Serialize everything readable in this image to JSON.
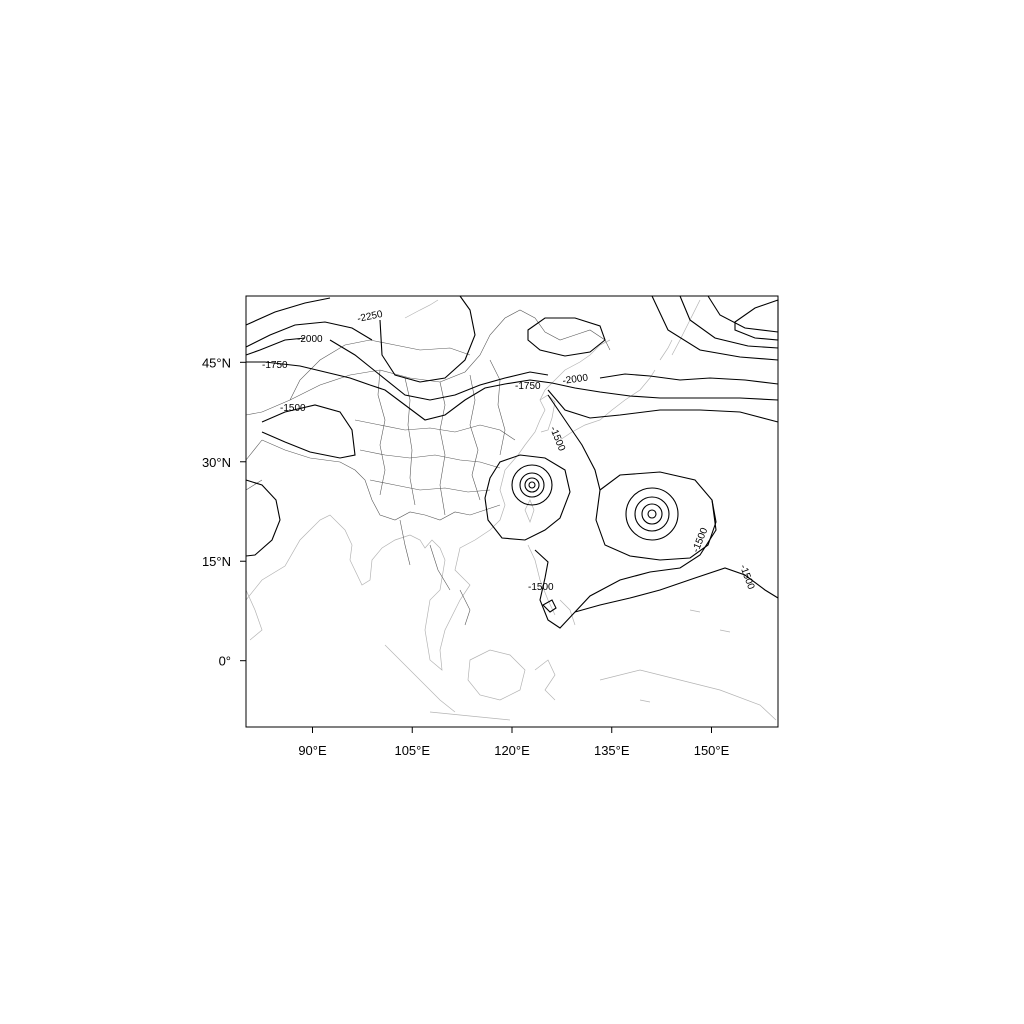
{
  "chart_data": {
    "type": "contour",
    "x_axis": {
      "unit": "°E",
      "range": [
        80,
        160
      ],
      "ticks": [
        90,
        105,
        120,
        135,
        150
      ],
      "tick_labels": [
        "90°E",
        "105°E",
        "120°E",
        "135°E",
        "150°E"
      ]
    },
    "y_axis": {
      "unit": "°N",
      "range": [
        -10,
        55
      ],
      "ticks": [
        0,
        15,
        30,
        45
      ],
      "tick_labels": [
        "0°",
        "15°N",
        "30°N",
        "45°N"
      ]
    },
    "contour_levels": [
      -2250,
      -2000,
      -1750,
      -1500
    ],
    "contour_labels": [
      "-2250",
      "-2000",
      "-2000",
      "-1750",
      "-1750",
      "-1500",
      "-1500",
      "-1500",
      "-1500",
      "-1500"
    ],
    "features": [
      {
        "name": "cyclone-east-china-sea",
        "center_lon": 123,
        "center_lat": 26.5
      },
      {
        "name": "cyclone-west-pacific",
        "center_lon": 141,
        "center_lat": 22
      }
    ],
    "grid": false,
    "legend": "none"
  }
}
